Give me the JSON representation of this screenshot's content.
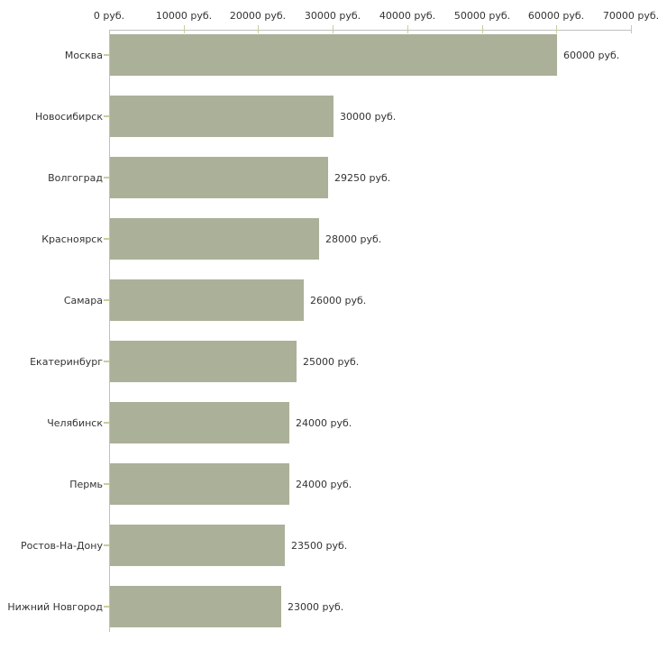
{
  "chart_data": {
    "type": "bar",
    "orientation": "horizontal",
    "categories": [
      "Москва",
      "Новосибирск",
      "Волгоград",
      "Красноярск",
      "Самара",
      "Екатеринбург",
      "Челябинск",
      "Пермь",
      "Ростов-На-Дону",
      "Нижний Новгород"
    ],
    "values": [
      60000,
      30000,
      29250,
      28000,
      26000,
      25000,
      24000,
      24000,
      23500,
      23000
    ],
    "value_labels": [
      "60000 руб.",
      "30000 руб.",
      "29250 руб.",
      "28000 руб.",
      "26000 руб.",
      "25000 руб.",
      "24000 руб.",
      "24000 руб.",
      "23500 руб.",
      "23000 руб."
    ],
    "x_axis": {
      "min": 0,
      "max": 70000,
      "tick_step": 10000,
      "position": "top",
      "tick_labels": [
        "0 руб.",
        "10000 руб.",
        "20000 руб.",
        "30000 руб.",
        "40000 руб.",
        "50000 руб.",
        "60000 руб.",
        "70000 руб."
      ]
    },
    "grid": false,
    "legend": false,
    "colors": {
      "bar": "#abb199",
      "axis_line": "#c0c0c0",
      "tick": "#cccc99",
      "text": "#333333",
      "background": "#ffffff"
    }
  }
}
